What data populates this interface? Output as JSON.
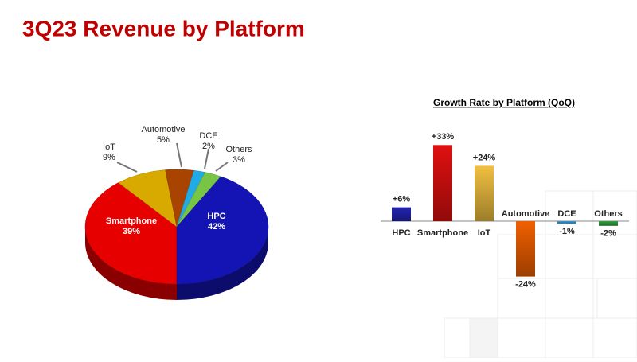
{
  "header": {
    "title": "3Q23 Revenue by Platform"
  },
  "chart_data": [
    {
      "type": "pie",
      "categories": [
        "HPC",
        "Smartphone",
        "IoT",
        "Automotive",
        "DCE",
        "Others"
      ],
      "values": [
        42,
        39,
        9,
        5,
        2,
        3
      ],
      "value_labels": [
        "42%",
        "39%",
        "9%",
        "5%",
        "2%",
        "3%"
      ],
      "colors": [
        "#1414b4",
        "#e60000",
        "#d8aa00",
        "#a84400",
        "#20aae6",
        "#78c444"
      ]
    },
    {
      "type": "bar",
      "title": "Growth Rate by Platform (QoQ)",
      "categories": [
        "HPC",
        "Smartphone",
        "IoT",
        "Automotive",
        "DCE",
        "Others"
      ],
      "values": [
        6,
        33,
        24,
        -24,
        -1,
        -2
      ],
      "value_labels": [
        "+6%",
        "+33%",
        "+24%",
        "-24%",
        "-1%",
        "-2%"
      ],
      "colors": [
        "#2424b4",
        "#e01010",
        "#f0c040",
        "#f06000",
        "#30a0e0",
        "#30a040"
      ]
    }
  ]
}
